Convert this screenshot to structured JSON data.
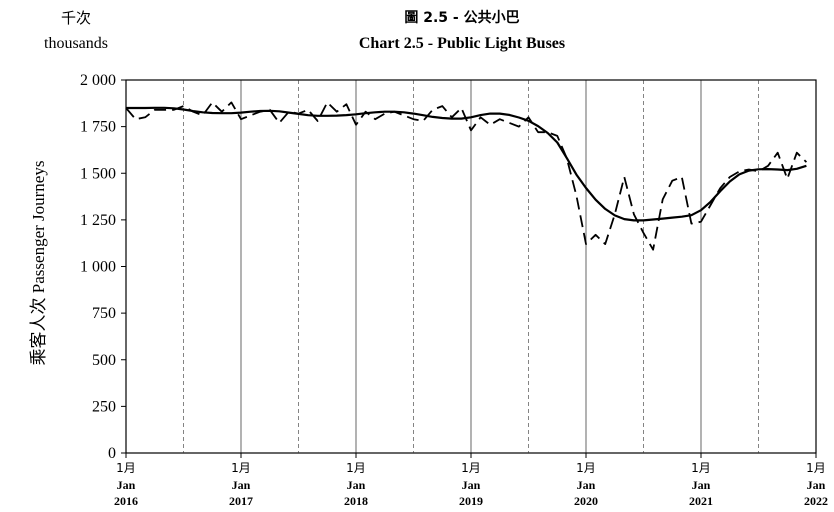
{
  "chart_data": {
    "type": "line",
    "title_cn": "圖 2.5 - 公共小巴",
    "title": "Chart 2.5 - Public Light Buses",
    "unit_cn": "千次",
    "unit": "thousands",
    "ylabel": "乘客人次 Passenger Journeys",
    "ylim": [
      0,
      2000
    ],
    "yticks": [
      0,
      250,
      500,
      750,
      1000,
      1250,
      1500,
      1750,
      2000
    ],
    "ytick_labels": [
      "0",
      "250",
      "500",
      "750",
      "1 000",
      "1 250",
      "1 500",
      "1 750",
      "2 000"
    ],
    "xticks": [
      {
        "cn": "1月",
        "en": "Jan",
        "year": "2016"
      },
      {
        "cn": "1月",
        "en": "Jan",
        "year": "2017"
      },
      {
        "cn": "1月",
        "en": "Jan",
        "year": "2018"
      },
      {
        "cn": "1月",
        "en": "Jan",
        "year": "2019"
      },
      {
        "cn": "1月",
        "en": "Jan",
        "year": "2020"
      },
      {
        "cn": "1月",
        "en": "Jan",
        "year": "2021"
      },
      {
        "cn": "1月",
        "en": "Jan",
        "year": "2022"
      }
    ],
    "x_start": "2016-01",
    "x_end": "2022-01",
    "grid": "vertical: solid at January, dashed at July",
    "legend": "none",
    "series": [
      {
        "style": "dashed",
        "color": "#000000",
        "values": [
          1850,
          1790,
          1800,
          1840,
          1840,
          1840,
          1860,
          1830,
          1810,
          1880,
          1830,
          1880,
          1790,
          1810,
          1830,
          1840,
          1770,
          1830,
          1820,
          1840,
          1780,
          1880,
          1830,
          1870,
          1760,
          1830,
          1790,
          1820,
          1830,
          1810,
          1790,
          1780,
          1840,
          1860,
          1800,
          1850,
          1730,
          1800,
          1760,
          1790,
          1770,
          1750,
          1800,
          1720,
          1720,
          1700,
          1580,
          1380,
          1120,
          1170,
          1120,
          1280,
          1480,
          1280,
          1180,
          1090,
          1360,
          1460,
          1480,
          1230,
          1240,
          1330,
          1420,
          1480,
          1510,
          1520,
          1510,
          1540,
          1610,
          1470,
          1610,
          1560
        ]
      },
      {
        "style": "solid",
        "color": "#000000",
        "values": [
          1850,
          1850,
          1850,
          1851,
          1851,
          1848,
          1842,
          1833,
          1827,
          1823,
          1822,
          1822,
          1825,
          1830,
          1834,
          1835,
          1832,
          1825,
          1818,
          1811,
          1808,
          1808,
          1809,
          1812,
          1816,
          1822,
          1827,
          1830,
          1830,
          1827,
          1820,
          1811,
          1802,
          1796,
          1793,
          1793,
          1800,
          1812,
          1820,
          1820,
          1813,
          1799,
          1781,
          1753,
          1716,
          1665,
          1581,
          1493,
          1421,
          1358,
          1309,
          1274,
          1254,
          1247,
          1247,
          1252,
          1257,
          1262,
          1267,
          1275,
          1302,
          1347,
          1404,
          1456,
          1494,
          1514,
          1521,
          1522,
          1520,
          1517,
          1524,
          1540
        ]
      }
    ]
  }
}
